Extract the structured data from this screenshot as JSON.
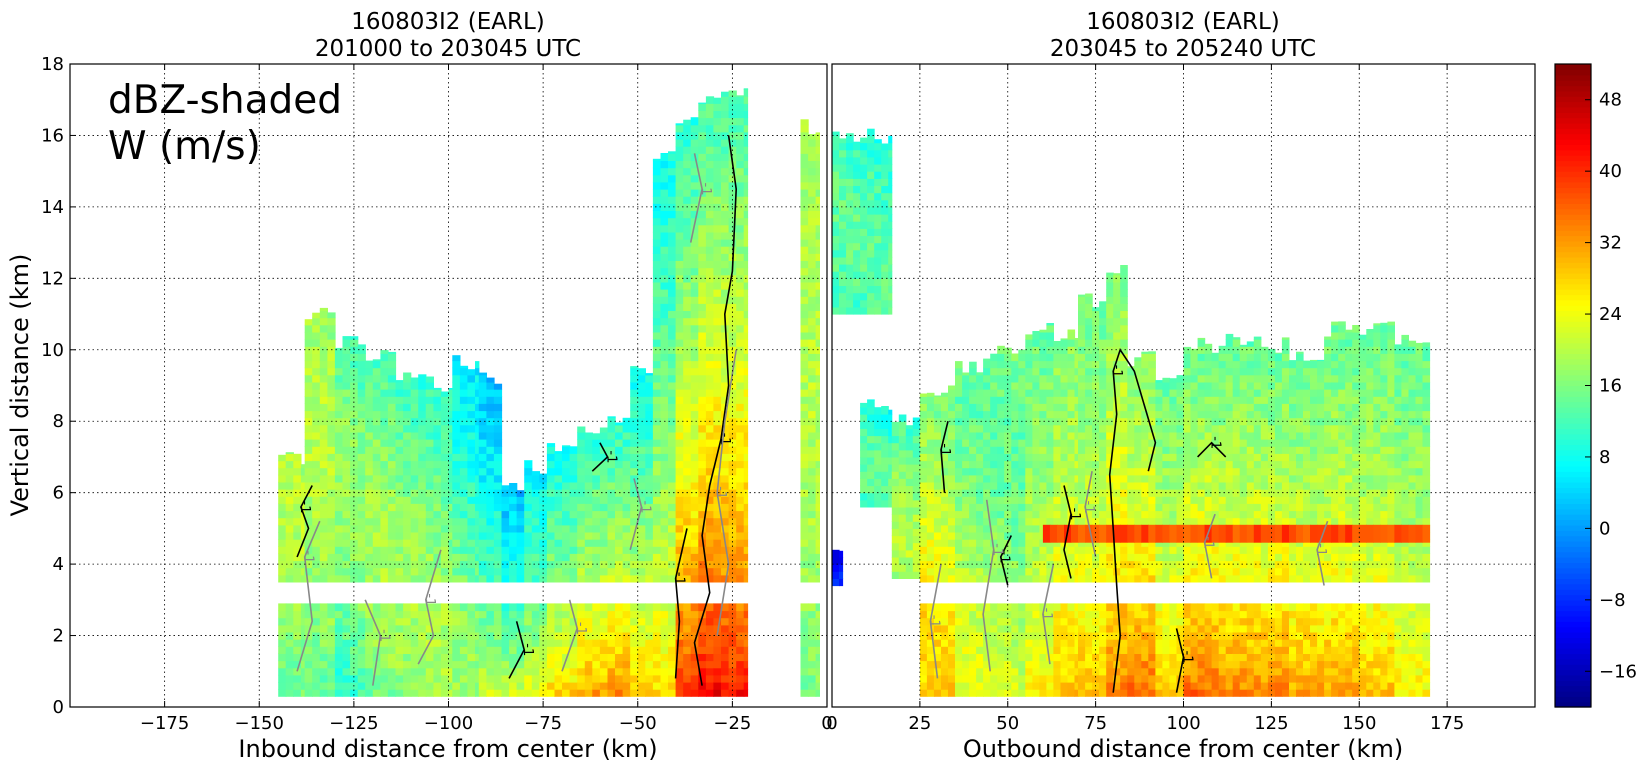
{
  "chart_data": [
    {
      "type": "heatmap",
      "panel": "inbound",
      "title": [
        "160803I2 (EARL)",
        "201000 to 203045 UTC"
      ],
      "xlabel": "Inbound distance from center (km)",
      "ylabel": "Vertical distance (km)",
      "xlim": [
        -200,
        0
      ],
      "ylim": [
        0,
        18
      ],
      "xticks": [
        -175,
        -150,
        -125,
        -100,
        -75,
        -50,
        -25,
        0
      ],
      "xtick_labels": [
        "−175",
        "−150",
        "−125",
        "−100",
        "−75",
        "−50",
        "−25",
        "0"
      ],
      "yticks": [
        0,
        2,
        4,
        6,
        8,
        10,
        12,
        14,
        16,
        18
      ],
      "grid": true,
      "annotation": [
        "dBZ-shaded",
        "W (m/s)"
      ],
      "contour_label": "-1",
      "data_gap_km": [
        3.4,
        3.0
      ],
      "columns": [
        {
          "x0": -145,
          "x1": -138,
          "top": 7.2,
          "low": 14,
          "high": 20,
          "mode": "mid"
        },
        {
          "x0": -138,
          "x1": -130,
          "top": 11.2,
          "low": 12,
          "high": 20,
          "mode": "mid"
        },
        {
          "x0": -130,
          "x1": -122,
          "top": 10.5,
          "low": 4,
          "high": 18,
          "mode": "mid"
        },
        {
          "x0": -122,
          "x1": -114,
          "top": 10.1,
          "low": 8,
          "high": 19,
          "mode": "mid"
        },
        {
          "x0": -114,
          "x1": -106,
          "top": 9.6,
          "low": 9,
          "high": 19,
          "mode": "mid"
        },
        {
          "x0": -106,
          "x1": -99,
          "top": 9.3,
          "low": 10,
          "high": 19,
          "mode": "mid"
        },
        {
          "x0": -99,
          "x1": -92,
          "top": 9.9,
          "low": 6,
          "high": 18,
          "mode": "mid"
        },
        {
          "x0": -92,
          "x1": -86,
          "top": 9.5,
          "low": 2,
          "high": 22,
          "mode": "low"
        },
        {
          "x0": -86,
          "x1": -80,
          "top": 6.4,
          "low": 2,
          "high": 22,
          "mode": "low"
        },
        {
          "x0": -80,
          "x1": -74,
          "top": 7.0,
          "low": 6,
          "high": 24,
          "mode": "low"
        },
        {
          "x0": -74,
          "x1": -66,
          "top": 7.6,
          "low": 8,
          "high": 28,
          "mode": "low"
        },
        {
          "x0": -66,
          "x1": -58,
          "top": 8.0,
          "low": 10,
          "high": 32,
          "mode": "low"
        },
        {
          "x0": -58,
          "x1": -52,
          "top": 8.4,
          "low": 10,
          "high": 34,
          "mode": "low"
        },
        {
          "x0": -52,
          "x1": -46,
          "top": 9.6,
          "low": 8,
          "high": 30,
          "mode": "low"
        },
        {
          "x0": -46,
          "x1": -40,
          "top": 15.8,
          "low": 8,
          "high": 28,
          "mode": "low"
        },
        {
          "x0": -40,
          "x1": -34,
          "top": 16.6,
          "low": 10,
          "high": 40,
          "mode": "low"
        },
        {
          "x0": -34,
          "x1": -28,
          "top": 17.1,
          "low": 12,
          "high": 44,
          "mode": "low"
        },
        {
          "x0": -28,
          "x1": -21,
          "top": 17.4,
          "low": 12,
          "high": 42,
          "mode": "low"
        },
        {
          "x0": -7,
          "x1": -2,
          "top": 16.5,
          "low": 14,
          "high": 20,
          "mode": "mid"
        }
      ],
      "contours": [
        {
          "color": "#000000",
          "points": [
            [
              -33,
              0.6
            ],
            [
              -35,
              1.8
            ],
            [
              -31,
              3.2
            ],
            [
              -33,
              4.8
            ],
            [
              -31,
              6.2
            ],
            [
              -28,
              7.5
            ],
            [
              -26,
              9.0
            ],
            [
              -27,
              11.0
            ],
            [
              -25,
              12.2
            ],
            [
              -24,
              14.5
            ],
            [
              -26,
              16.0
            ]
          ]
        },
        {
          "color": "#000000",
          "points": [
            [
              -40,
              0.8
            ],
            [
              -39,
              2.4
            ],
            [
              -40,
              3.6
            ],
            [
              -37,
              5.0
            ]
          ]
        },
        {
          "color": "#000000",
          "points": [
            [
              -84,
              0.8
            ],
            [
              -80,
              1.6
            ],
            [
              -82,
              2.4
            ]
          ]
        },
        {
          "color": "#000000",
          "points": [
            [
              -140,
              4.2
            ],
            [
              -137,
              5.0
            ],
            [
              -139,
              5.6
            ],
            [
              -136,
              6.2
            ]
          ]
        },
        {
          "color": "#000000",
          "points": [
            [
              -62,
              6.6
            ],
            [
              -58,
              7.0
            ],
            [
              -60,
              7.4
            ]
          ]
        },
        {
          "color": "#888888",
          "points": [
            [
              -140,
              1.0
            ],
            [
              -136,
              2.4
            ],
            [
              -138,
              4.2
            ],
            [
              -134,
              5.2
            ]
          ]
        },
        {
          "color": "#888888",
          "points": [
            [
              -120,
              0.6
            ],
            [
              -118,
              2.0
            ],
            [
              -122,
              3.0
            ]
          ]
        },
        {
          "color": "#888888",
          "points": [
            [
              -108,
              1.2
            ],
            [
              -104,
              2.0
            ],
            [
              -106,
              3.0
            ],
            [
              -102,
              4.4
            ]
          ]
        },
        {
          "color": "#888888",
          "points": [
            [
              -70,
              1.0
            ],
            [
              -66,
              2.2
            ],
            [
              -68,
              3.0
            ]
          ]
        },
        {
          "color": "#888888",
          "points": [
            [
              -29,
              2.0
            ],
            [
              -26,
              4.0
            ],
            [
              -29,
              6.0
            ],
            [
              -27,
              8.0
            ],
            [
              -24,
              10.0
            ]
          ]
        },
        {
          "color": "#888888",
          "points": [
            [
              -36,
              13.0
            ],
            [
              -33,
              14.5
            ],
            [
              -35,
              15.5
            ]
          ]
        },
        {
          "color": "#888888",
          "points": [
            [
              -52,
              4.4
            ],
            [
              -49,
              5.6
            ],
            [
              -51,
              6.4
            ]
          ]
        }
      ]
    },
    {
      "type": "heatmap",
      "panel": "outbound",
      "title": [
        "160803I2 (EARL)",
        "203045 to 205240 UTC"
      ],
      "xlabel": "Outbound distance from center (km)",
      "ylabel": "",
      "xlim": [
        0,
        200
      ],
      "ylim": [
        0,
        18
      ],
      "xticks": [
        0,
        25,
        50,
        75,
        100,
        125,
        150,
        175
      ],
      "xtick_labels": [
        "0",
        "25",
        "50",
        "75",
        "100",
        "125",
        "150",
        "175"
      ],
      "yticks": [
        0,
        2,
        4,
        6,
        8,
        10,
        12,
        14,
        16,
        18
      ],
      "grid": true,
      "contour_label": "-1",
      "data_gap_km": [
        3.4,
        3.0
      ],
      "columns": [
        {
          "x0": 0,
          "x1": 3,
          "top": 4.4,
          "low": -12,
          "high": -8,
          "mode": "low",
          "bottom": 3.4
        },
        {
          "x0": 0,
          "x1": 17,
          "top": 16.2,
          "low": 8,
          "high": 14,
          "mode": "mid",
          "bottom": 11.0
        },
        {
          "x0": 8,
          "x1": 17,
          "top": 8.8,
          "low": 6,
          "high": 14,
          "mode": "mid",
          "bottom": 5.6
        },
        {
          "x0": 17,
          "x1": 25,
          "top": 8.2,
          "low": 10,
          "high": 20,
          "mode": "mid",
          "bottom": 3.6
        },
        {
          "x0": 25,
          "x1": 35,
          "top": 9.0,
          "low": 16,
          "high": 28,
          "mode": "mid"
        },
        {
          "x0": 35,
          "x1": 45,
          "top": 9.8,
          "low": 14,
          "high": 24,
          "mode": "mid"
        },
        {
          "x0": 45,
          "x1": 55,
          "top": 10.3,
          "low": 14,
          "high": 24,
          "mode": "mid"
        },
        {
          "x0": 55,
          "x1": 63,
          "top": 10.9,
          "low": 14,
          "high": 26,
          "mode": "low"
        },
        {
          "x0": 63,
          "x1": 70,
          "top": 10.6,
          "low": 16,
          "high": 30,
          "mode": "low"
        },
        {
          "x0": 70,
          "x1": 78,
          "top": 11.6,
          "low": 14,
          "high": 30,
          "mode": "low"
        },
        {
          "x0": 78,
          "x1": 84,
          "top": 12.4,
          "low": 16,
          "high": 34,
          "mode": "low"
        },
        {
          "x0": 84,
          "x1": 92,
          "top": 10.0,
          "low": 16,
          "high": 36,
          "mode": "low"
        },
        {
          "x0": 92,
          "x1": 100,
          "top": 9.6,
          "low": 14,
          "high": 30,
          "mode": "low"
        },
        {
          "x0": 100,
          "x1": 110,
          "top": 10.4,
          "low": 14,
          "high": 36,
          "mode": "low"
        },
        {
          "x0": 110,
          "x1": 120,
          "top": 10.6,
          "low": 14,
          "high": 34,
          "mode": "low"
        },
        {
          "x0": 120,
          "x1": 130,
          "top": 10.4,
          "low": 14,
          "high": 34,
          "mode": "low"
        },
        {
          "x0": 130,
          "x1": 140,
          "top": 10.1,
          "low": 14,
          "high": 32,
          "mode": "low"
        },
        {
          "x0": 140,
          "x1": 150,
          "top": 10.8,
          "low": 14,
          "high": 32,
          "mode": "low"
        },
        {
          "x0": 150,
          "x1": 160,
          "top": 10.9,
          "low": 14,
          "high": 30,
          "mode": "low"
        },
        {
          "x0": 160,
          "x1": 170,
          "top": 10.6,
          "low": 14,
          "high": 26,
          "mode": "low"
        }
      ],
      "bright_band": {
        "x0": 60,
        "x1": 170,
        "y0": 4.6,
        "y1": 5.1,
        "value": 38
      },
      "contours": [
        {
          "color": "#000000",
          "points": [
            [
              80,
              0.4
            ],
            [
              82,
              2.0
            ],
            [
              81,
              3.4
            ],
            [
              80,
              5.0
            ],
            [
              79,
              6.5
            ],
            [
              81,
              8.2
            ],
            [
              80,
              9.4
            ],
            [
              82,
              10.0
            ],
            [
              86,
              9.4
            ],
            [
              89,
              8.4
            ],
            [
              92,
              7.4
            ],
            [
              90,
              6.6
            ]
          ]
        },
        {
          "color": "#000000",
          "points": [
            [
              32,
              6.0
            ],
            [
              31,
              7.2
            ],
            [
              33,
              8.0
            ]
          ]
        },
        {
          "color": "#000000",
          "points": [
            [
              50,
              3.4
            ],
            [
              48,
              4.2
            ],
            [
              51,
              4.8
            ]
          ]
        },
        {
          "color": "#000000",
          "points": [
            [
              68,
              3.6
            ],
            [
              66,
              4.4
            ],
            [
              68,
              5.4
            ],
            [
              66,
              6.2
            ]
          ]
        },
        {
          "color": "#000000",
          "points": [
            [
              104,
              7.0
            ],
            [
              108,
              7.4
            ],
            [
              112,
              7.0
            ]
          ]
        },
        {
          "color": "#000000",
          "points": [
            [
              98,
              0.4
            ],
            [
              100,
              1.4
            ],
            [
              98,
              2.2
            ]
          ]
        },
        {
          "color": "#888888",
          "points": [
            [
              30,
              0.8
            ],
            [
              28,
              2.4
            ],
            [
              31,
              4.0
            ]
          ]
        },
        {
          "color": "#888888",
          "points": [
            [
              45,
              1.0
            ],
            [
              43,
              2.6
            ],
            [
              46,
              4.4
            ],
            [
              44,
              5.8
            ]
          ]
        },
        {
          "color": "#888888",
          "points": [
            [
              62,
              1.2
            ],
            [
              60,
              2.6
            ],
            [
              63,
              4.0
            ]
          ]
        },
        {
          "color": "#888888",
          "points": [
            [
              75,
              4.2
            ],
            [
              72,
              5.6
            ],
            [
              74,
              6.6
            ]
          ]
        },
        {
          "color": "#888888",
          "points": [
            [
              108,
              3.6
            ],
            [
              106,
              4.6
            ],
            [
              109,
              5.4
            ]
          ]
        },
        {
          "color": "#888888",
          "points": [
            [
              140,
              3.4
            ],
            [
              138,
              4.4
            ],
            [
              141,
              5.2
            ]
          ]
        }
      ]
    }
  ],
  "colorbar": {
    "min": -20,
    "max": 52,
    "ticks": [
      48,
      40,
      32,
      24,
      16,
      8,
      0,
      -8,
      -16
    ],
    "tick_labels": [
      "48",
      "40",
      "32",
      "24",
      "16",
      "8",
      "0",
      "−8",
      "−16"
    ],
    "colormap": "jet"
  }
}
